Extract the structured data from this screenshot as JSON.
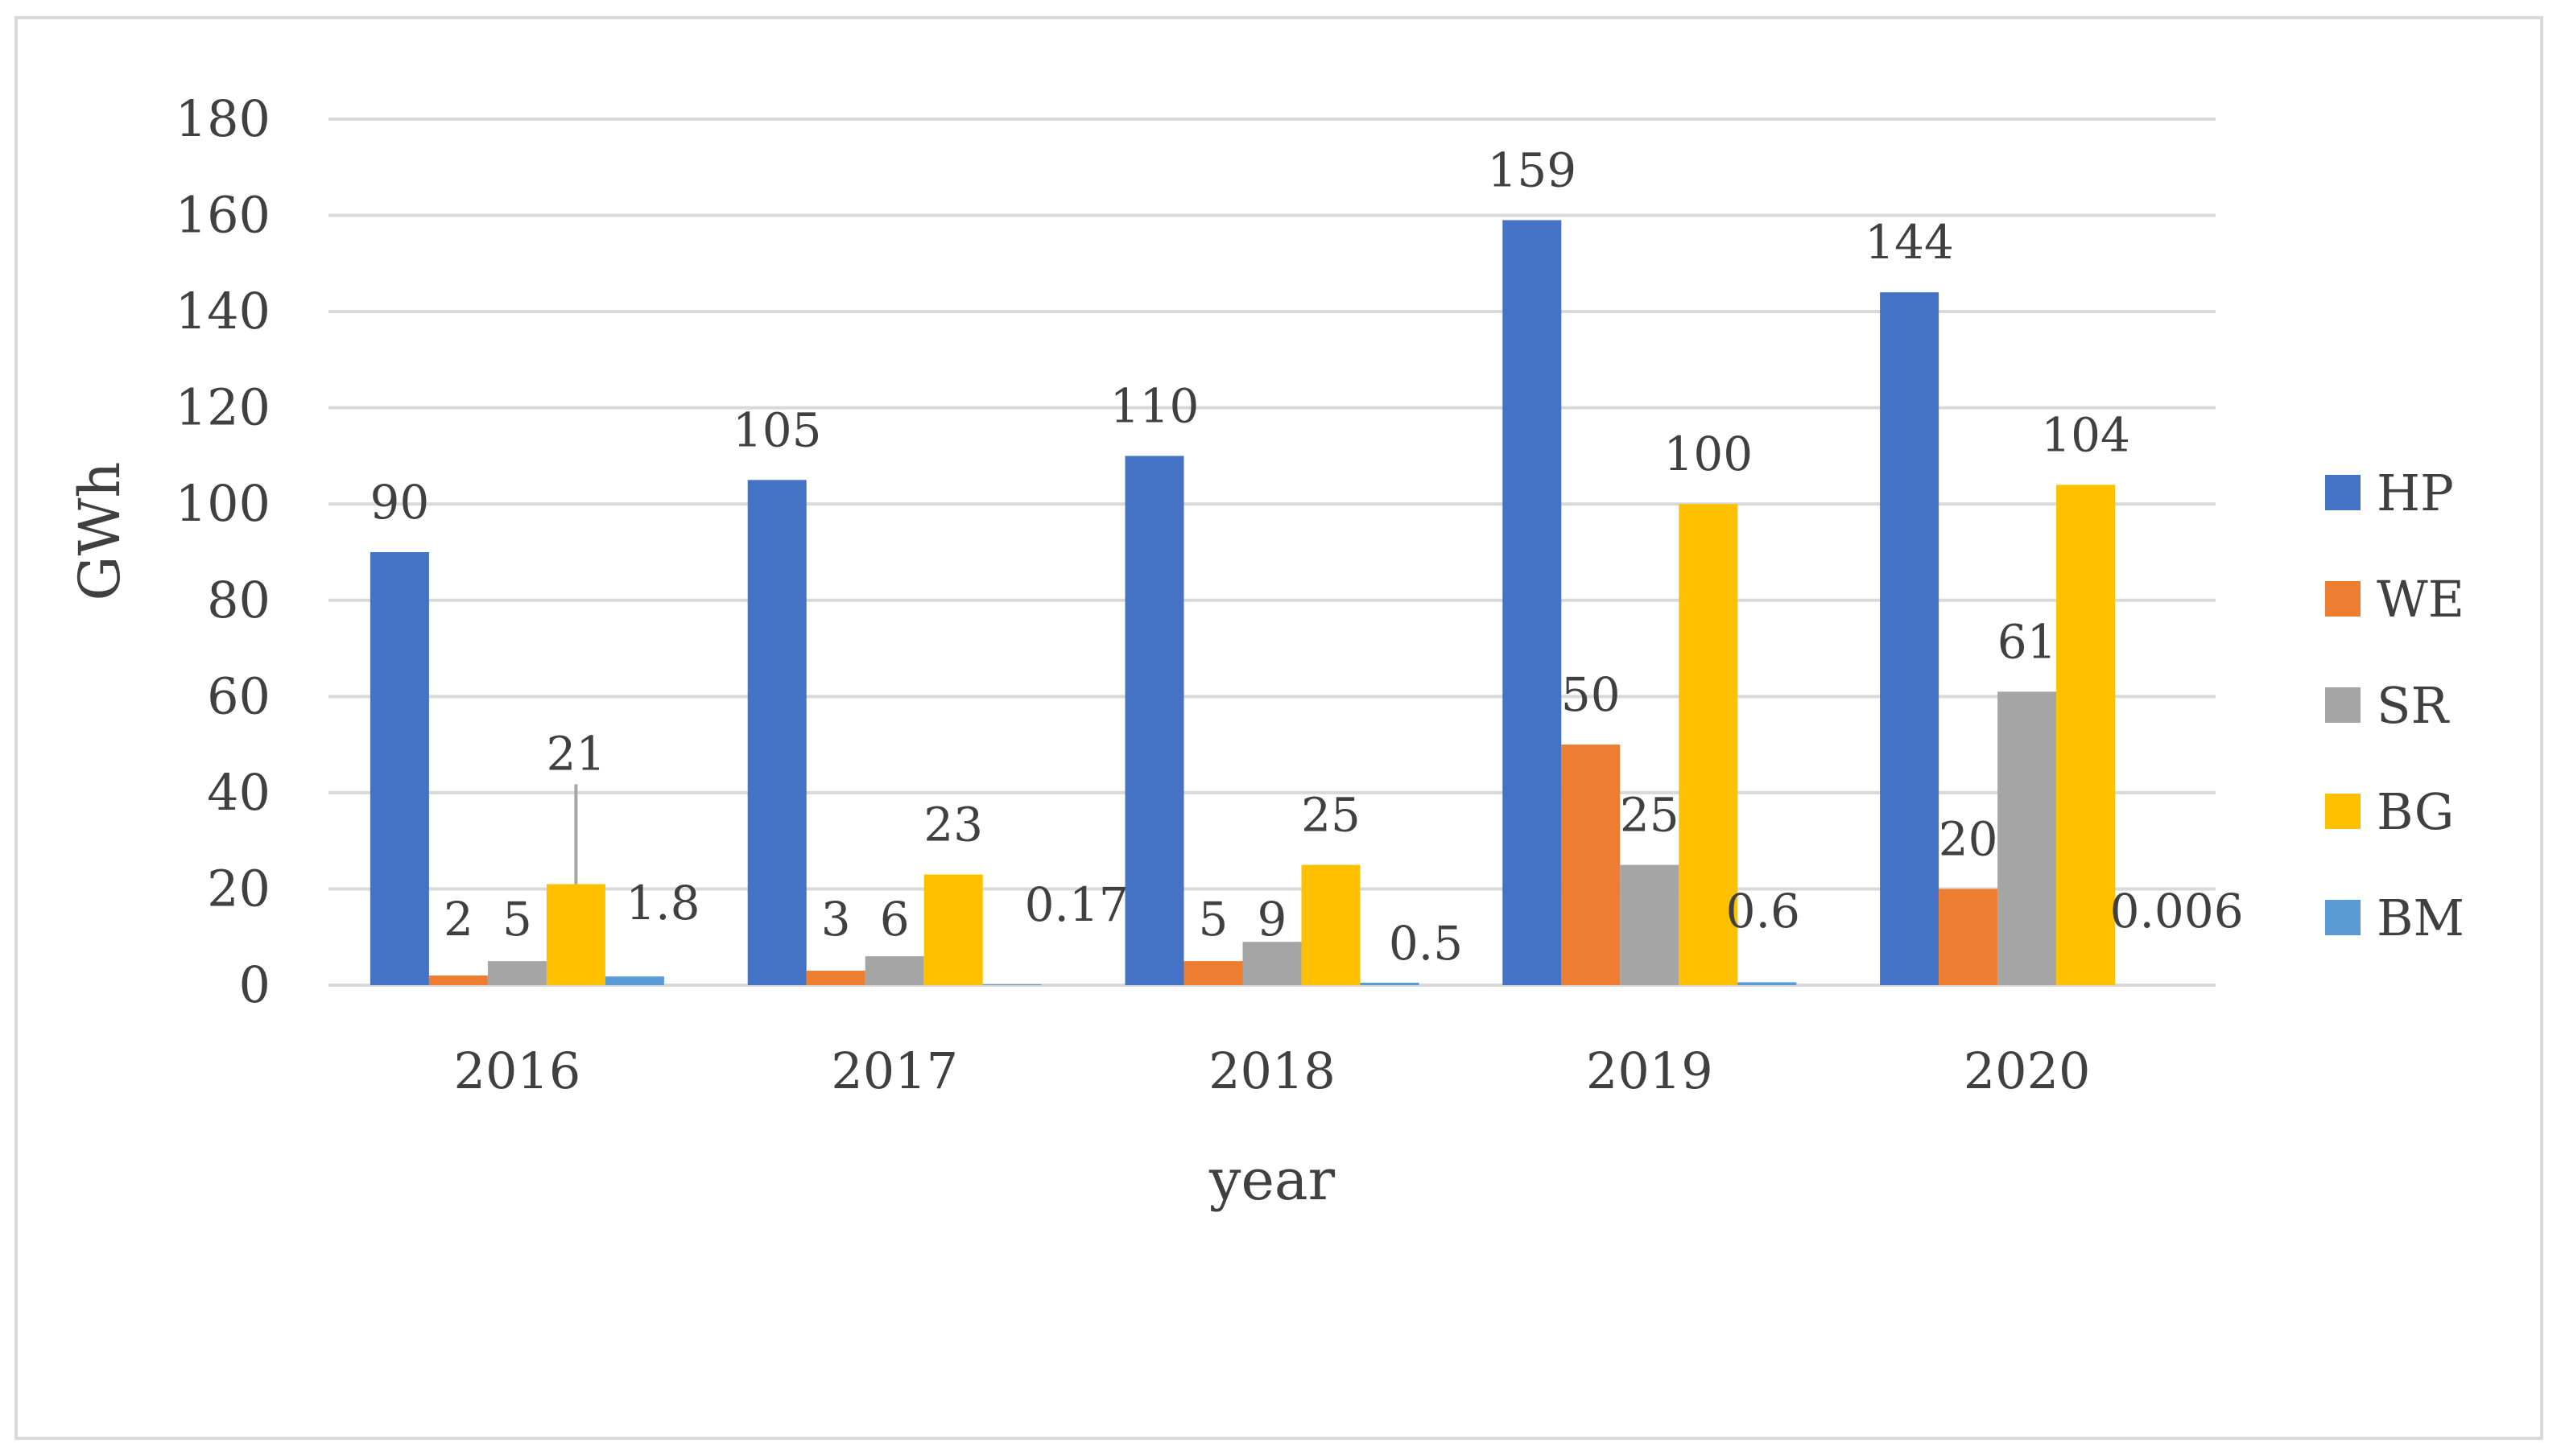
{
  "chart_data": {
    "type": "bar",
    "title": "",
    "xlabel": "year",
    "ylabel": "GWh",
    "ylim": [
      0,
      180
    ],
    "yticks": [
      0,
      20,
      40,
      60,
      80,
      100,
      120,
      140,
      160,
      180
    ],
    "ytick_labels": [
      "0",
      "20",
      "40",
      "60",
      "80",
      "100",
      "120",
      "140",
      "160",
      "180"
    ],
    "grid": true,
    "legend_position": "right",
    "categories": [
      "2016",
      "2017",
      "2018",
      "2019",
      "2020"
    ],
    "series": [
      {
        "name": "HP",
        "color": "#4472C4",
        "values": [
          90,
          105,
          110,
          159,
          144
        ],
        "labels": [
          "90",
          "105",
          "110",
          "159",
          "144"
        ]
      },
      {
        "name": "WE",
        "color": "#ED7D31",
        "values": [
          2,
          3,
          5,
          50,
          20
        ],
        "labels": [
          "2",
          "3",
          "5",
          "50",
          "20"
        ]
      },
      {
        "name": "SR",
        "color": "#A5A5A5",
        "values": [
          5,
          6,
          9,
          25,
          61
        ],
        "labels": [
          "5",
          "6",
          "9",
          "25",
          "61"
        ]
      },
      {
        "name": "BG",
        "color": "#FFC000",
        "values": [
          21,
          23,
          25,
          100,
          104
        ],
        "labels": [
          "21",
          "23",
          "25",
          "100",
          "104"
        ]
      },
      {
        "name": "BM",
        "color": "#5B9BD5",
        "values": [
          1.8,
          0.17,
          0.5,
          0.6,
          0.006
        ],
        "labels": [
          "1.8",
          "0.17",
          "0.5",
          "0.6",
          "0.006"
        ]
      }
    ],
    "colors": {
      "grid": "#d9d9d9",
      "text": "#404040",
      "frame": "#d9d9d9",
      "leader_line": "#a6a6a6"
    }
  }
}
